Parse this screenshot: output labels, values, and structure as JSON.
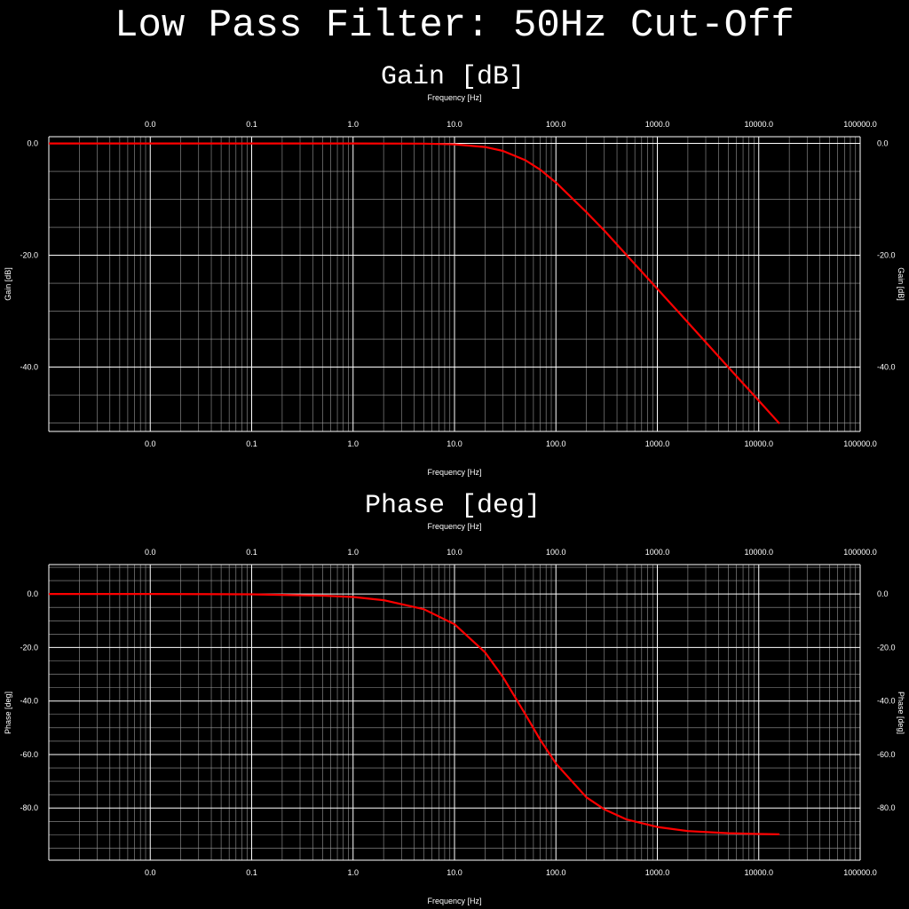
{
  "title": "Low Pass Filter: 50Hz Cut-Off",
  "colors": {
    "background": "#000000",
    "grid": "#9a9a9a",
    "axis": "#ffffff",
    "curve": "#ff0000"
  },
  "chart_data": [
    {
      "type": "line",
      "title": "Gain [dB]",
      "xlabel": "Frequency [Hz]",
      "ylabel": "Gain [dB]",
      "xscale": "log",
      "grid": true,
      "x_tick_labels": [
        "0.0",
        "0.1",
        "1.0",
        "10.0",
        "100.0",
        "1000.0",
        "10000.0",
        "100000.0"
      ],
      "x_tick_values": [
        0.01,
        0.1,
        1,
        10,
        100,
        1000,
        10000,
        100000
      ],
      "y_tick_labels": [
        "0.0",
        "-20.0",
        "-40.0"
      ],
      "y_tick_values": [
        0,
        -20,
        -40
      ],
      "xlim": [
        0.001,
        100000
      ],
      "ylim": [
        -51.5,
        1.2
      ],
      "series": [
        {
          "x": [
            0.001,
            0.01,
            0.1,
            1,
            5,
            10,
            20,
            30,
            50,
            70,
            100,
            200,
            300,
            500,
            1000,
            2000,
            5000,
            10000,
            16000
          ],
          "y": [
            0.0,
            0.0,
            0.0,
            0.0,
            -0.04,
            -0.17,
            -0.64,
            -1.34,
            -3.01,
            -4.7,
            -6.99,
            -12.3,
            -15.6,
            -20.0,
            -26.0,
            -32.0,
            -40.0,
            -46.0,
            -50.1
          ]
        }
      ]
    },
    {
      "type": "line",
      "title": "Phase [deg]",
      "xlabel": "Frequency [Hz]",
      "ylabel": "Phase [deg]",
      "xscale": "log",
      "grid": true,
      "x_tick_labels": [
        "0.0",
        "0.1",
        "1.0",
        "10.0",
        "100.0",
        "1000.0",
        "10000.0",
        "100000.0"
      ],
      "x_tick_values": [
        0.01,
        0.1,
        1,
        10,
        100,
        1000,
        10000,
        100000
      ],
      "y_tick_labels": [
        "0.0",
        "-20.0",
        "-40.0",
        "-60.0",
        "-80.0"
      ],
      "y_tick_values": [
        0,
        -20,
        -40,
        -60,
        -80
      ],
      "xlim": [
        0.001,
        100000
      ],
      "ylim": [
        -99.5,
        11
      ],
      "series": [
        {
          "x": [
            0.001,
            0.01,
            0.1,
            0.5,
            1,
            2,
            5,
            10,
            20,
            30,
            50,
            70,
            100,
            200,
            300,
            500,
            1000,
            2000,
            5000,
            10000,
            16000
          ],
          "y": [
            0.0,
            0.0,
            -0.1,
            -0.6,
            -1.1,
            -2.3,
            -5.7,
            -11.3,
            -21.8,
            -31.0,
            -45.0,
            -54.5,
            -63.4,
            -76.0,
            -80.5,
            -84.3,
            -87.1,
            -88.6,
            -89.4,
            -89.7,
            -89.8
          ]
        }
      ]
    }
  ]
}
